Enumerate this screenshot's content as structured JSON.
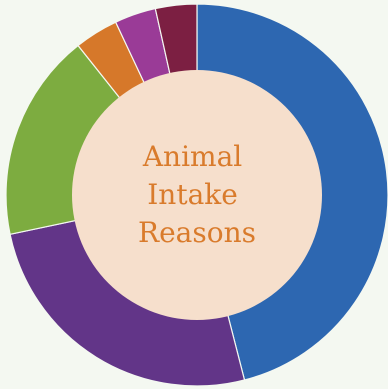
{
  "chart_data": {
    "type": "pie",
    "variant": "donut",
    "title": "Animal Intake Reasons",
    "title_lines": [
      "Animal",
      "Intake",
      "Reasons"
    ],
    "slices": [
      {
        "value": 46.0,
        "color": "#2d67b1"
      },
      {
        "value": 25.7,
        "color": "#623588"
      },
      {
        "value": 17.6,
        "color": "#7dac40"
      },
      {
        "value": 3.7,
        "color": "#d6782a"
      },
      {
        "value": 3.5,
        "color": "#9a3b97"
      },
      {
        "value": 3.5,
        "color": "#7c1f42"
      }
    ],
    "start_angle_deg": 0,
    "direction": "clockwise",
    "center_color": "#f6dfcc",
    "separator_color": "#f4f8f1",
    "legend": "none"
  }
}
